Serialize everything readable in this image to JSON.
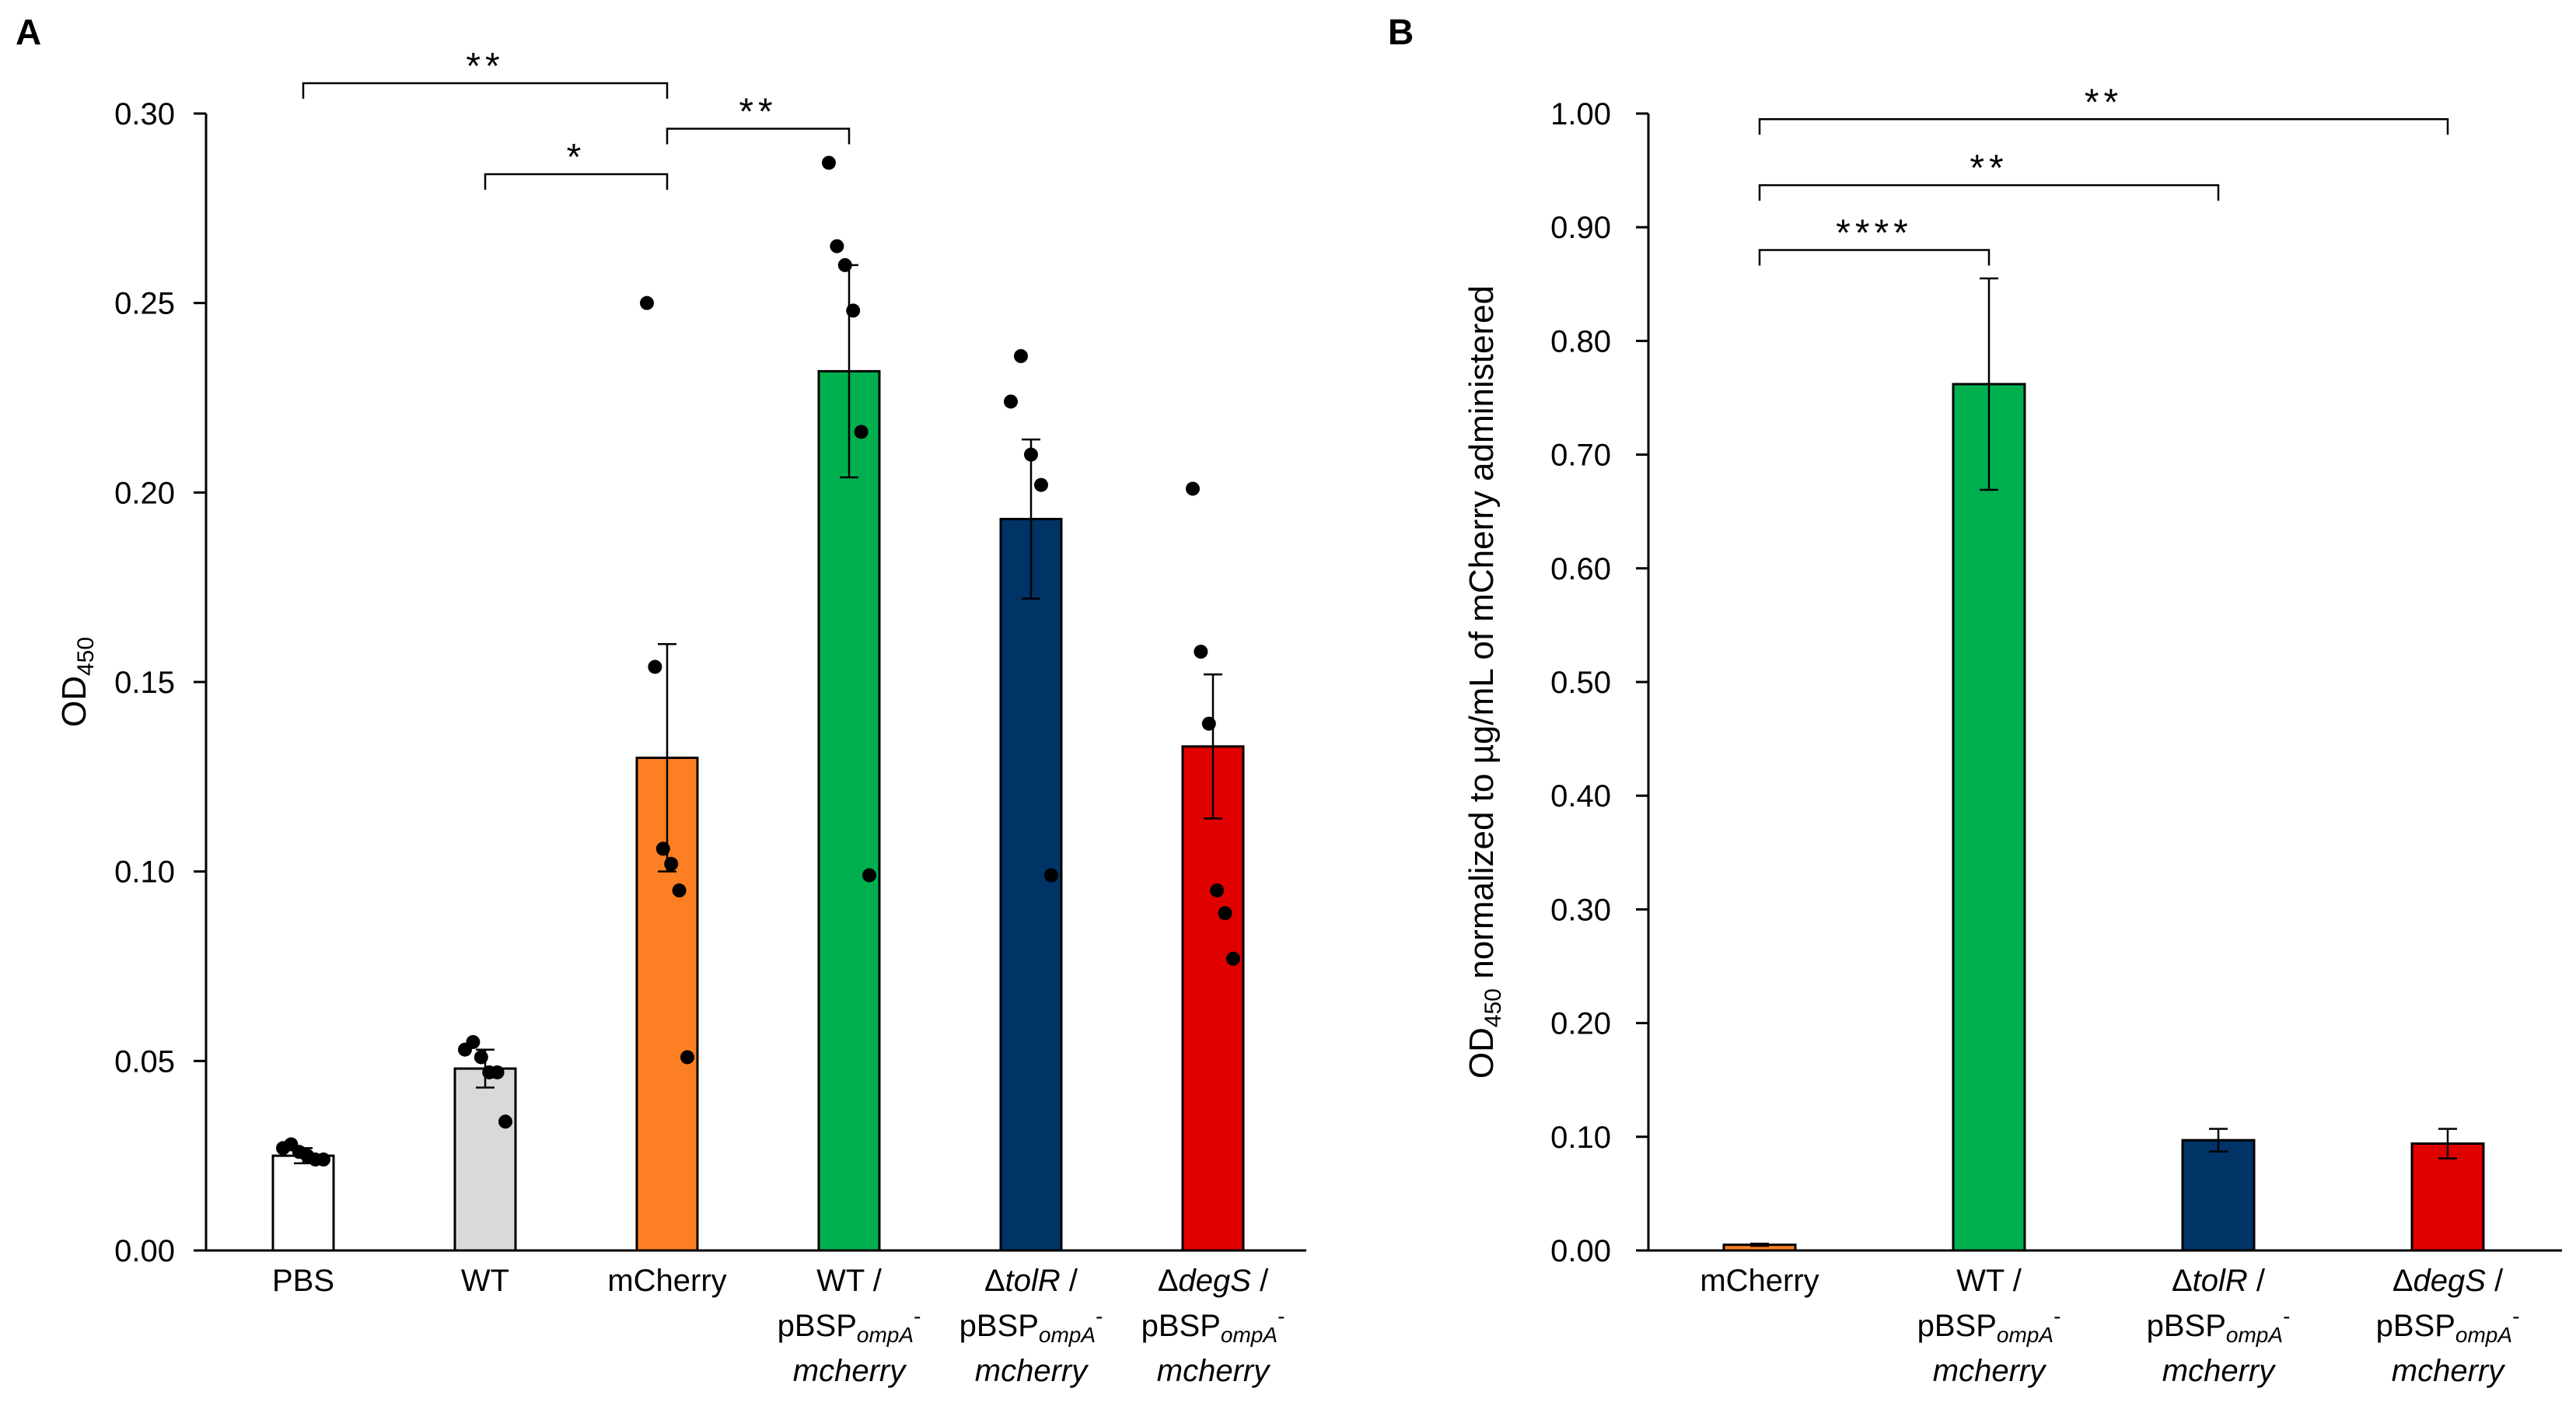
{
  "chart_data": [
    {
      "panel": "A",
      "type": "bar",
      "ylabel": "OD",
      "ylabel_sub": "450",
      "ylim": [
        0,
        0.3
      ],
      "yticks": [
        "0.00",
        "0.05",
        "0.10",
        "0.15",
        "0.20",
        "0.25",
        "0.30"
      ],
      "categories": [
        {
          "lines": [
            "PBS"
          ]
        },
        {
          "lines": [
            "WT"
          ]
        },
        {
          "lines": [
            "mCherry"
          ]
        },
        {
          "lines": [
            "WT /",
            "pBSP",
            "mcherry"
          ],
          "line2_sub": "ompA",
          "line2_sup": "-"
        },
        {
          "lines": [
            "Δ",
            "tolR",
            " /",
            "pBSP",
            "mcherry"
          ],
          "line2_sub": "ompA",
          "line2_sup": "-"
        },
        {
          "lines": [
            "Δ",
            "degS",
            " /",
            "pBSP",
            "mcherry"
          ],
          "line2_sub": "ompA",
          "line2_sup": "-"
        }
      ],
      "values": [
        0.025,
        0.048,
        0.13,
        0.232,
        0.193,
        0.133
      ],
      "errors": [
        0.002,
        0.005,
        0.03,
        0.028,
        0.021,
        0.019
      ],
      "colors": [
        "#ffffff",
        "#d9d9d9",
        "#fd7f23",
        "#00b04f",
        "#003366",
        "#e00000"
      ],
      "points": [
        [
          0.027,
          0.028,
          0.026,
          0.025,
          0.024,
          0.024
        ],
        [
          0.053,
          0.055,
          0.051,
          0.047,
          0.047,
          0.034
        ],
        [
          0.25,
          0.154,
          0.106,
          0.102,
          0.095,
          0.051
        ],
        [
          0.287,
          0.265,
          0.26,
          0.248,
          0.216,
          0.099
        ],
        [
          0.224,
          0.236,
          0.21,
          0.202,
          0.099
        ],
        [
          0.201,
          0.158,
          0.139,
          0.095,
          0.089,
          0.077
        ]
      ],
      "significance": [
        {
          "from": 0,
          "to": 2,
          "y": 0.308,
          "label": "**"
        },
        {
          "from": 1,
          "to": 2,
          "y": 0.284,
          "label": "*"
        },
        {
          "from": 2,
          "to": 3,
          "y": 0.296,
          "label": "**"
        }
      ]
    },
    {
      "panel": "B",
      "type": "bar",
      "ylabel": "OD",
      "ylabel_sub": "450",
      "ylabel_rest": " normalized to µg/mL  of mCherry administered",
      "ylim": [
        0,
        1.0
      ],
      "yticks": [
        "0.00",
        "0.10",
        "0.20",
        "0.30",
        "0.40",
        "0.50",
        "0.60",
        "0.70",
        "0.80",
        "0.90",
        "1.00"
      ],
      "categories": [
        {
          "lines": [
            "mCherry"
          ]
        },
        {
          "lines": [
            "WT /",
            "pBSP",
            "mcherry"
          ],
          "line2_sub": "ompA",
          "line2_sup": "-"
        },
        {
          "lines": [
            "Δ",
            "tolR",
            " /",
            "pBSP",
            "mcherry"
          ],
          "line2_sub": "ompA",
          "line2_sup": "-"
        },
        {
          "lines": [
            "Δ",
            "degS",
            " /",
            "pBSP",
            "mcherry"
          ],
          "line2_sub": "ompA",
          "line2_sup": "-"
        }
      ],
      "values": [
        0.005,
        0.762,
        0.097,
        0.094
      ],
      "errors": [
        0.001,
        0.093,
        0.01,
        0.013
      ],
      "colors": [
        "#fd7f23",
        "#00b04f",
        "#003366",
        "#e00000"
      ],
      "significance": [
        {
          "from": 0,
          "to": 3,
          "y": 0.995,
          "label": "**"
        },
        {
          "from": 0,
          "to": 2,
          "y": 0.937,
          "label": "**"
        },
        {
          "from": 0,
          "to": 1,
          "y": 0.88,
          "label": "****"
        }
      ]
    }
  ]
}
